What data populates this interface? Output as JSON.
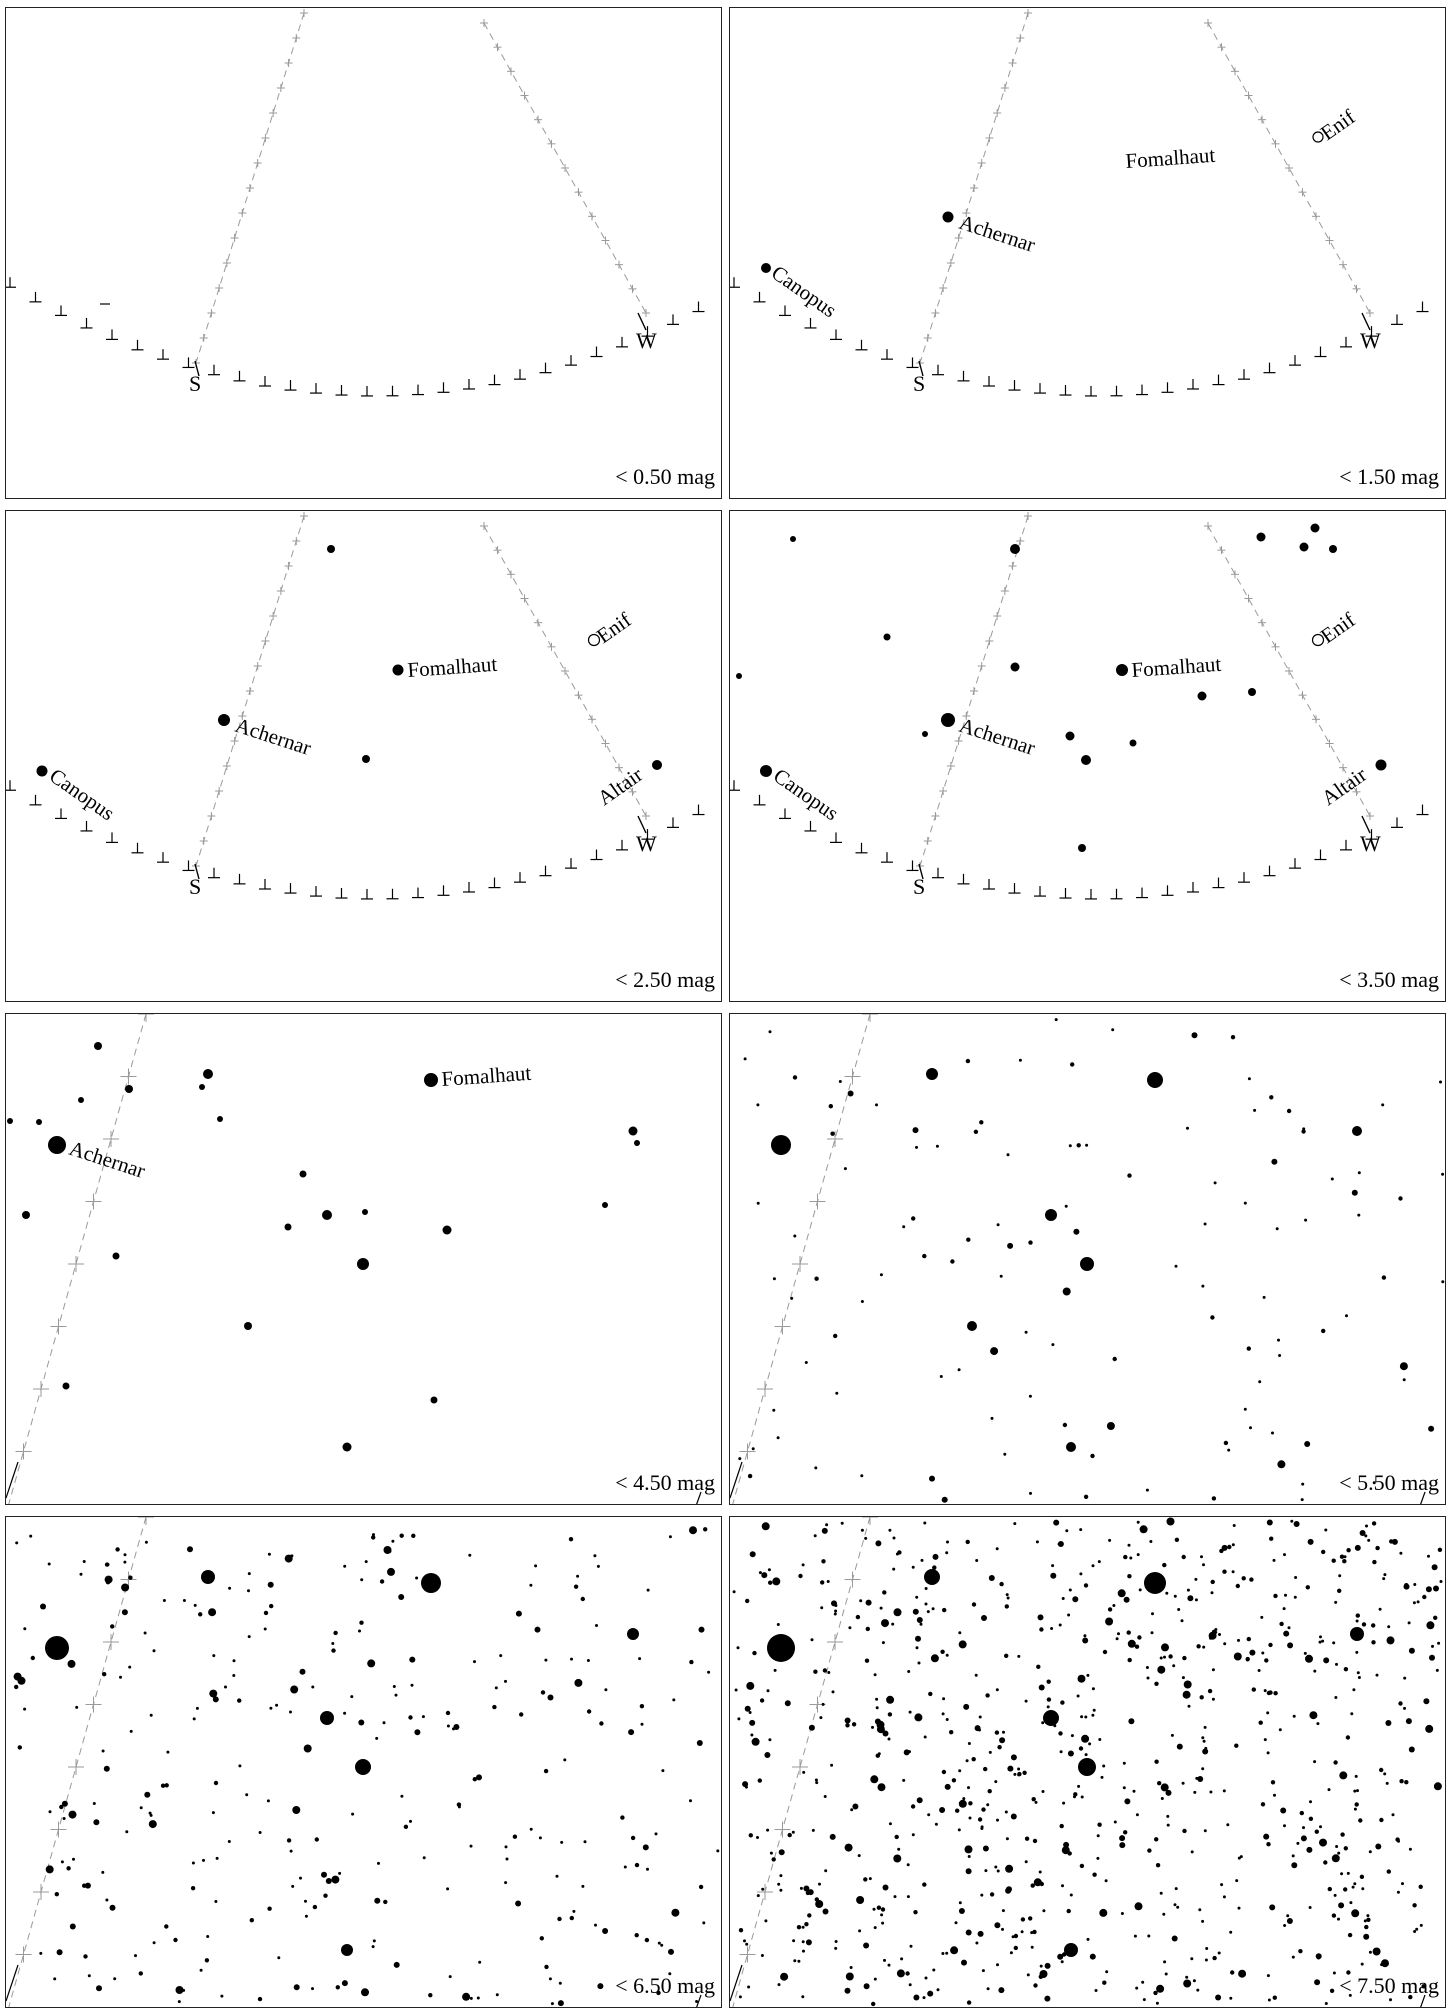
{
  "panels": [
    {
      "mag_label": "< 0.50 mag"
    },
    {
      "mag_label": "< 1.50 mag"
    },
    {
      "mag_label": "< 2.50 mag"
    },
    {
      "mag_label": "< 3.50 mag"
    },
    {
      "mag_label": "< 4.50 mag"
    },
    {
      "mag_label": "< 5.50 mag"
    },
    {
      "mag_label": "< 6.50 mag"
    },
    {
      "mag_label": "< 7.50 mag"
    }
  ],
  "compass": {
    "south": "S",
    "west": "W"
  },
  "star_names": {
    "canopus": "Canopus",
    "achernar": "Achernar",
    "fomalhaut": "Fomalhaut",
    "enif": "Enif",
    "altair": "Altair"
  },
  "colors": {
    "stars": "#000000",
    "grid": "#9a9a9a",
    "horizon": "#000000"
  }
}
